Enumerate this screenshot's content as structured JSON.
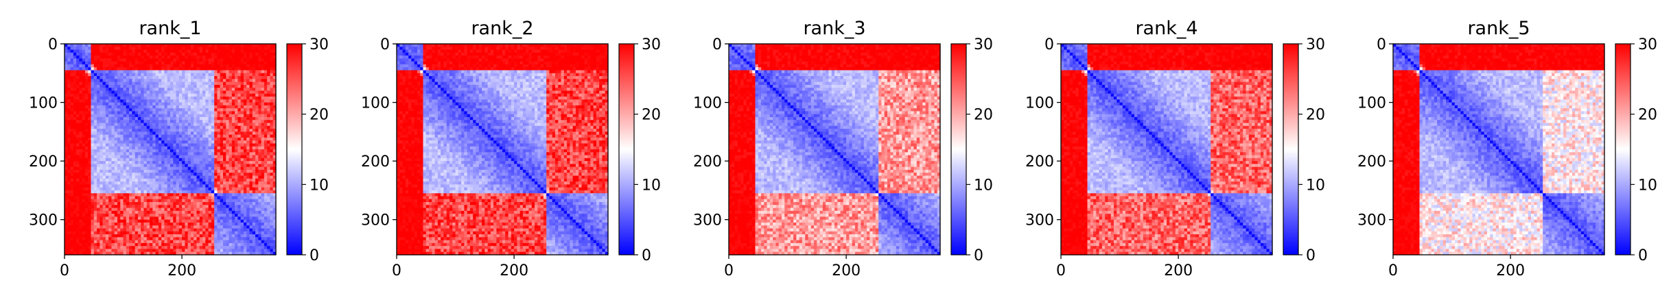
{
  "chart_data": {
    "type": "heatmap",
    "panels": [
      {
        "title": "rank_1",
        "matrix_size": 360,
        "blocks": [
          [
            0,
            45
          ],
          [
            45,
            255
          ],
          [
            255,
            360
          ]
        ],
        "inter_12": 30,
        "inter_23": 26,
        "inter_13": 30,
        "intra": 5
      },
      {
        "title": "rank_2",
        "matrix_size": 360,
        "blocks": [
          [
            0,
            45
          ],
          [
            45,
            255
          ],
          [
            255,
            360
          ]
        ],
        "inter_12": 30,
        "inter_23": 26,
        "inter_13": 30,
        "intra": 5
      },
      {
        "title": "rank_3",
        "matrix_size": 360,
        "blocks": [
          [
            0,
            45
          ],
          [
            45,
            255
          ],
          [
            255,
            360
          ]
        ],
        "inter_12": 30,
        "inter_23": 21,
        "inter_13": 30,
        "intra": 5
      },
      {
        "title": "rank_4",
        "matrix_size": 360,
        "blocks": [
          [
            0,
            45
          ],
          [
            45,
            255
          ],
          [
            255,
            360
          ]
        ],
        "inter_12": 30,
        "inter_23": 24,
        "inter_13": 30,
        "intra": 5
      },
      {
        "title": "rank_5",
        "matrix_size": 360,
        "blocks": [
          [
            0,
            45
          ],
          [
            45,
            255
          ],
          [
            255,
            360
          ]
        ],
        "inter_12": 30,
        "inter_23": 16,
        "inter_13": 30,
        "intra": 5
      }
    ],
    "x_ticks": [
      "0",
      "200"
    ],
    "x_tick_values": [
      0,
      200
    ],
    "y_ticks": [
      "0",
      "100",
      "200",
      "300"
    ],
    "y_tick_values": [
      0,
      100,
      200,
      300
    ],
    "axis_range": [
      0,
      360
    ],
    "colorbar": {
      "min": 0,
      "max": 30,
      "ticks": [
        "0",
        "10",
        "20",
        "30"
      ],
      "tick_values": [
        0,
        10,
        20,
        30
      ],
      "colormap": "bwr",
      "low_color": "#0000ff",
      "mid_color": "#ffffff",
      "high_color": "#ff0000"
    }
  }
}
